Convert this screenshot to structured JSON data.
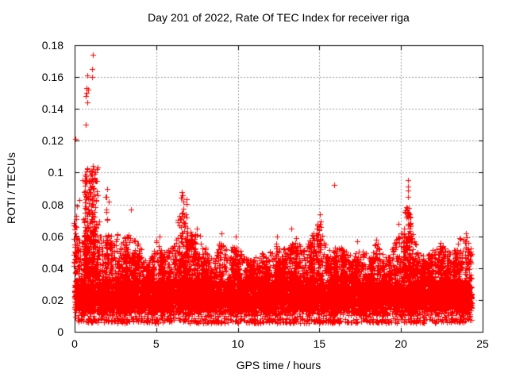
{
  "chart": {
    "title": "Day 201 of 2022, Rate Of TEC Index for receiver riga",
    "xlabel": "GPS time / hours",
    "ylabel": "ROTI / TECUs"
  },
  "chart_data": {
    "type": "scatter",
    "title": "Day 201 of 2022, Rate Of TEC Index for receiver riga",
    "xlabel": "GPS time / hours",
    "ylabel": "ROTI / TECUs",
    "xlim": [
      0,
      25
    ],
    "ylim": [
      0,
      0.18
    ],
    "xticks": [
      0,
      5,
      10,
      15,
      20,
      25
    ],
    "yticks": [
      0,
      0.02,
      0.04,
      0.06,
      0.08,
      0.1,
      0.12,
      0.14,
      0.16,
      0.18
    ],
    "xtick_labels": [
      "0",
      "5",
      "10",
      "15",
      "20",
      "25"
    ],
    "ytick_labels": [
      "0",
      "0.02",
      "0.04",
      "0.06",
      "0.08",
      "0.1",
      "0.12",
      "0.14",
      "0.16",
      "0.18"
    ],
    "grid": true,
    "legend": "none",
    "marker": "plus",
    "marker_color": "#ff0000",
    "grid_color": "#a0a0a0",
    "axis_color": "#000000",
    "background_color": "#ffffff",
    "x_data_range": [
      0.0,
      24.33
    ],
    "dense_band": {
      "y_min": 0.0055,
      "core_low": 0.0085,
      "core_high": 0.034,
      "density_peak": 0.021
    },
    "upper_envelope": {
      "t_start": 0,
      "t_step": 0.5,
      "values": [
        0.085,
        0.092,
        0.1,
        0.078,
        0.088,
        0.06,
        0.066,
        0.06,
        0.054,
        0.042,
        0.058,
        0.05,
        0.054,
        0.085,
        0.062,
        0.064,
        0.054,
        0.047,
        0.06,
        0.051,
        0.057,
        0.046,
        0.047,
        0.051,
        0.053,
        0.056,
        0.051,
        0.06,
        0.051,
        0.061,
        0.072,
        0.051,
        0.053,
        0.053,
        0.049,
        0.051,
        0.049,
        0.057,
        0.047,
        0.053,
        0.066,
        0.077,
        0.051,
        0.047,
        0.053,
        0.055,
        0.051,
        0.058,
        0.061
      ]
    },
    "events": [
      {
        "t_range": [
          0.55,
          1.45
        ],
        "y_base": 0.035,
        "y_max": 0.104,
        "n": 220
      },
      {
        "t_range": [
          6.4,
          6.9
        ],
        "y_base": 0.034,
        "y_max": 0.086,
        "n": 60
      },
      {
        "t_range": [
          20.2,
          20.6
        ],
        "y_base": 0.034,
        "y_max": 0.08,
        "n": 60
      },
      {
        "t_range": [
          14.8,
          15.1
        ],
        "y_base": 0.032,
        "y_max": 0.072,
        "n": 40
      }
    ],
    "peak_points": [
      [
        0.05,
        0.121
      ],
      [
        0.7,
        0.148
      ],
      [
        0.7,
        0.13
      ],
      [
        0.73,
        0.153
      ],
      [
        0.75,
        0.15
      ],
      [
        0.78,
        0.161
      ],
      [
        0.78,
        0.144
      ],
      [
        0.81,
        0.152
      ],
      [
        1.07,
        0.165
      ],
      [
        1.07,
        0.16
      ],
      [
        1.13,
        0.174
      ],
      [
        1.1,
        0.104
      ],
      [
        1.18,
        0.102
      ],
      [
        1.26,
        0.1
      ],
      [
        0.62,
        0.095
      ],
      [
        0.5,
        0.095
      ],
      [
        0.92,
        0.093
      ],
      [
        0.95,
        0.09
      ],
      [
        0.3,
        0.083
      ],
      [
        0.15,
        0.079
      ],
      [
        1.9,
        0.085
      ],
      [
        2.0,
        0.09
      ],
      [
        2.1,
        0.082
      ],
      [
        3.45,
        0.077
      ],
      [
        5.2,
        0.06
      ],
      [
        6.55,
        0.088
      ],
      [
        6.6,
        0.086
      ],
      [
        6.65,
        0.082
      ],
      [
        6.6,
        0.075
      ],
      [
        7.1,
        0.063
      ],
      [
        7.5,
        0.065
      ],
      [
        9.0,
        0.062
      ],
      [
        9.85,
        0.06
      ],
      [
        12.4,
        0.06
      ],
      [
        13.26,
        0.065
      ],
      [
        14.9,
        0.068
      ],
      [
        15.03,
        0.074
      ],
      [
        15.9,
        0.092
      ],
      [
        17.3,
        0.057
      ],
      [
        18.5,
        0.058
      ],
      [
        19.85,
        0.068
      ],
      [
        20.3,
        0.075
      ],
      [
        20.35,
        0.072
      ],
      [
        20.41,
        0.095
      ],
      [
        20.41,
        0.091
      ],
      [
        20.41,
        0.089
      ],
      [
        20.41,
        0.085
      ],
      [
        22.4,
        0.056
      ],
      [
        23.6,
        0.059
      ],
      [
        24.0,
        0.062
      ]
    ]
  }
}
